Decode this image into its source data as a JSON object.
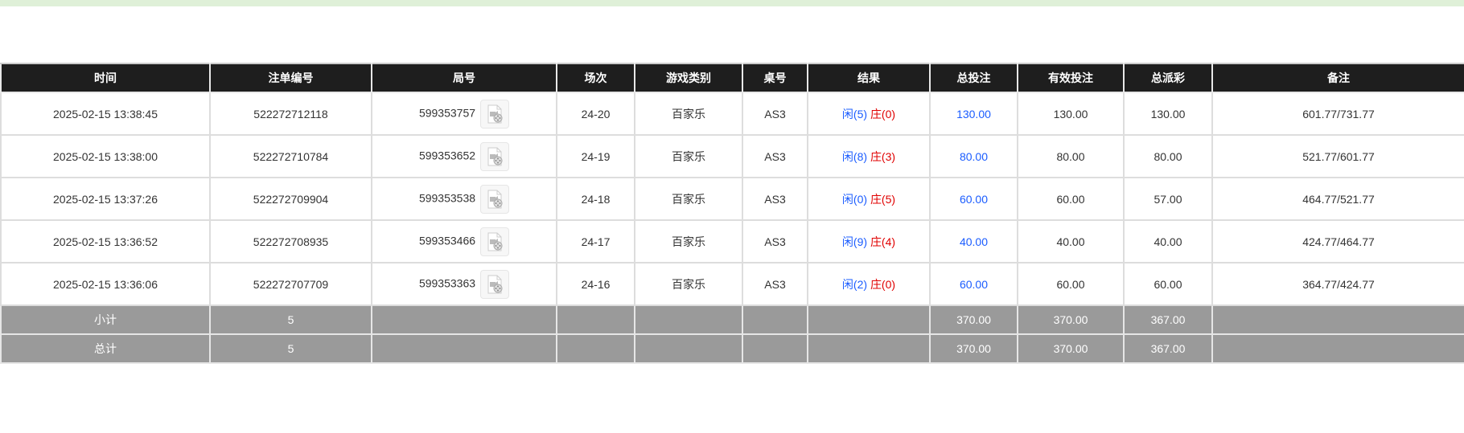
{
  "colors": {
    "header_bg": "#1e1e1e",
    "summary_bg": "#9a9a9a",
    "player": "#1a5cff",
    "banker": "#e00000",
    "top_bar": "#dff0d8"
  },
  "headers": [
    "时间",
    "注单编号",
    "局号",
    "场次",
    "游戏类别",
    "桌号",
    "结果",
    "总投注",
    "有效投注",
    "总派彩",
    "备注"
  ],
  "rows": [
    {
      "time": "2025-02-15 13:38:45",
      "bet_id": "522272712118",
      "round": "599353757",
      "shoe": "24-20",
      "game": "百家乐",
      "table": "AS3",
      "player": "闲(5)",
      "banker": "庄(0)",
      "total_bet": "130.00",
      "valid_bet": "130.00",
      "payout": "130.00",
      "note": "601.77/731.77"
    },
    {
      "time": "2025-02-15 13:38:00",
      "bet_id": "522272710784",
      "round": "599353652",
      "shoe": "24-19",
      "game": "百家乐",
      "table": "AS3",
      "player": "闲(8)",
      "banker": "庄(3)",
      "total_bet": "80.00",
      "valid_bet": "80.00",
      "payout": "80.00",
      "note": "521.77/601.77"
    },
    {
      "time": "2025-02-15 13:37:26",
      "bet_id": "522272709904",
      "round": "599353538",
      "shoe": "24-18",
      "game": "百家乐",
      "table": "AS3",
      "player": "闲(0)",
      "banker": "庄(5)",
      "total_bet": "60.00",
      "valid_bet": "60.00",
      "payout": "57.00",
      "note": "464.77/521.77"
    },
    {
      "time": "2025-02-15 13:36:52",
      "bet_id": "522272708935",
      "round": "599353466",
      "shoe": "24-17",
      "game": "百家乐",
      "table": "AS3",
      "player": "闲(9)",
      "banker": "庄(4)",
      "total_bet": "40.00",
      "valid_bet": "40.00",
      "payout": "40.00",
      "note": "424.77/464.77"
    },
    {
      "time": "2025-02-15 13:36:06",
      "bet_id": "522272707709",
      "round": "599353363",
      "shoe": "24-16",
      "game": "百家乐",
      "table": "AS3",
      "player": "闲(2)",
      "banker": "庄(0)",
      "total_bet": "60.00",
      "valid_bet": "60.00",
      "payout": "60.00",
      "note": "364.77/424.77"
    }
  ],
  "subtotal": {
    "label": "小计",
    "count": "5",
    "total_bet": "370.00",
    "valid_bet": "370.00",
    "payout": "367.00"
  },
  "total": {
    "label": "总计",
    "count": "5",
    "total_bet": "370.00",
    "valid_bet": "370.00",
    "payout": "367.00"
  },
  "icons": {
    "replay": "video-replay-icon"
  }
}
